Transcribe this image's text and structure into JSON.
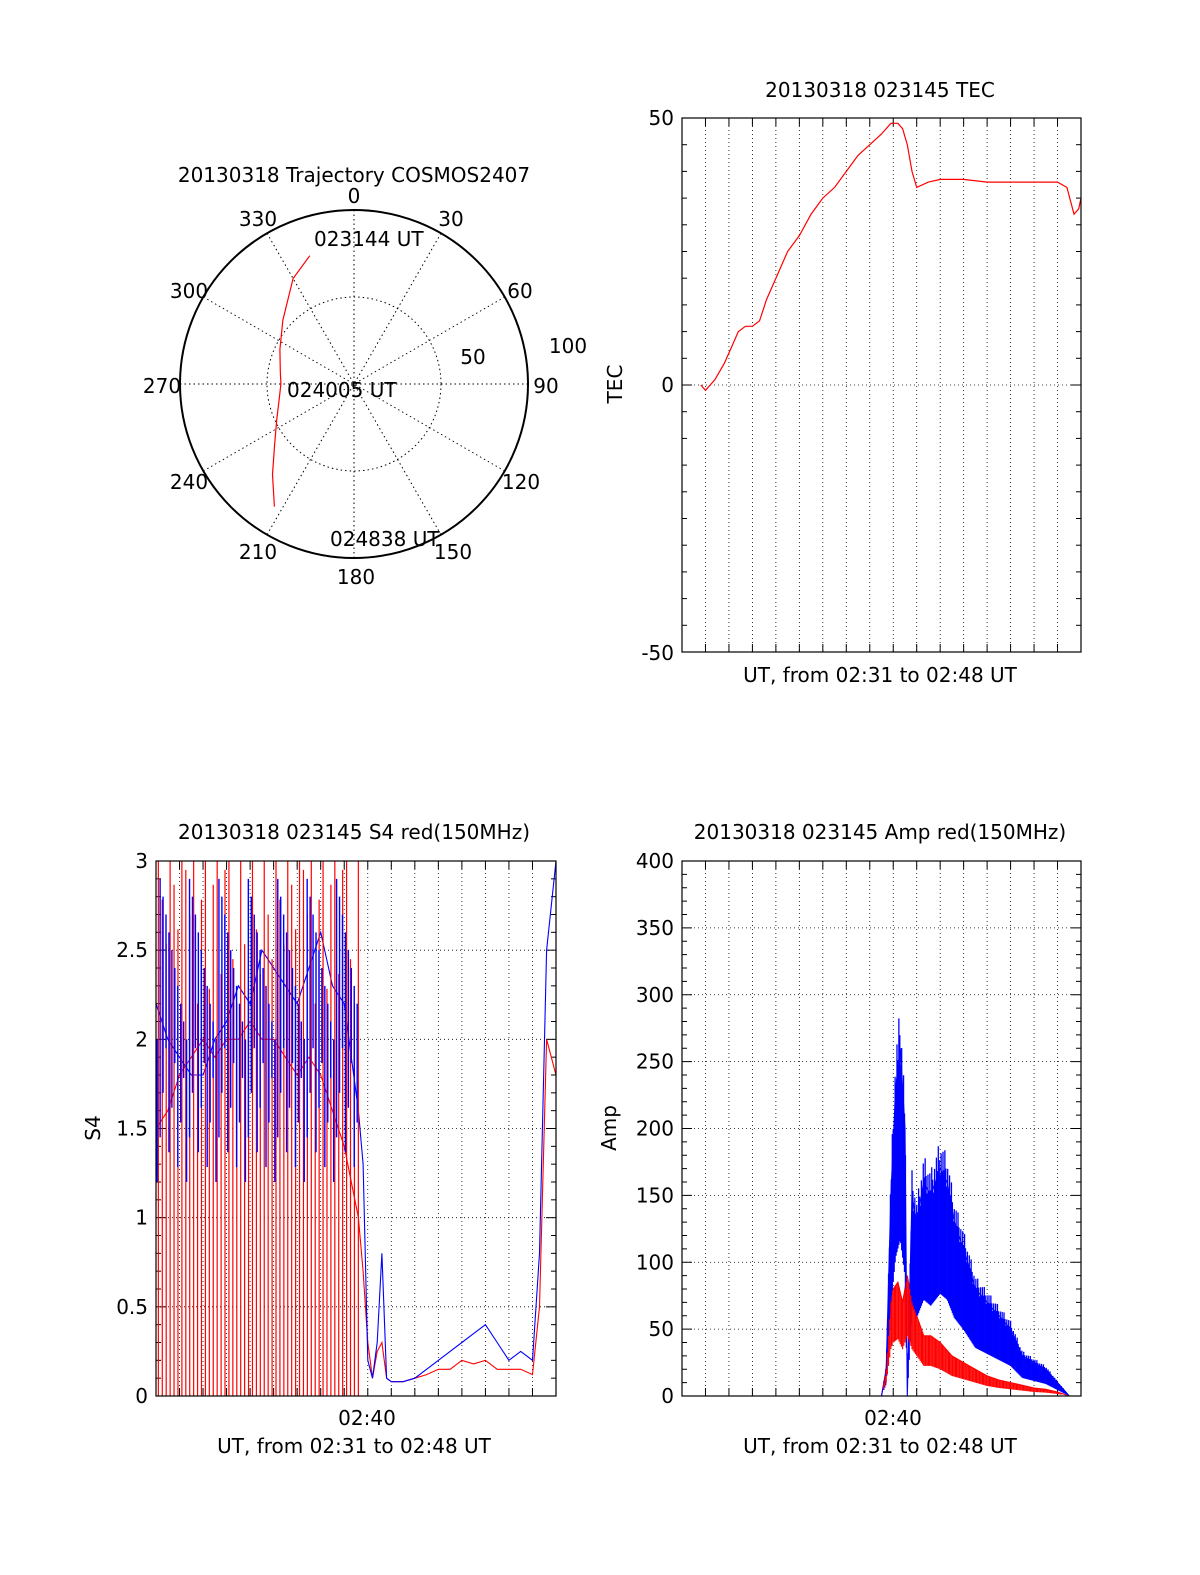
{
  "colors": {
    "red": "#ff0000",
    "blue": "#0000ff",
    "axis": "#000000"
  },
  "chart_data": [
    {
      "id": "trajectory",
      "type": "polar",
      "title": "20130318 Trajectory COSMOS2407",
      "angle_labels": [
        "0",
        "30",
        "60",
        "90",
        "120",
        "150",
        "180",
        "210",
        "240",
        "270",
        "300",
        "330"
      ],
      "radial_labels": [
        "50",
        "100"
      ],
      "radial_range": [
        0,
        100
      ],
      "annotations": [
        "023144 UT",
        "024005 UT",
        "024838 UT"
      ],
      "series": [
        {
          "name": "trajectory",
          "color": "red",
          "points_az_r": [
            [
              341,
              78
            ],
            [
              330,
              70
            ],
            [
              312,
              55
            ],
            [
              295,
              47
            ],
            [
              280,
              43
            ],
            [
              270,
              42
            ],
            [
              258,
              44
            ],
            [
              245,
              49
            ],
            [
              232,
              58
            ],
            [
              222,
              70
            ],
            [
              213,
              84
            ]
          ]
        }
      ]
    },
    {
      "id": "tec",
      "type": "line",
      "title": "20130318 023145 TEC",
      "xlabel": "UT, from 02:31 to 02:48 UT",
      "ylabel": "TEC",
      "ylim": [
        -50,
        50
      ],
      "yticks": [
        "50",
        "0",
        "-50"
      ],
      "xlim_minutes": [
        0,
        17
      ],
      "grid": true,
      "series": [
        {
          "name": "TEC",
          "color": "red",
          "x": [
            0.8,
            1.0,
            1.4,
            1.8,
            2.1,
            2.4,
            2.7,
            3.0,
            3.3,
            3.6,
            4.0,
            4.5,
            5.0,
            5.5,
            6.0,
            6.5,
            7.0,
            7.5,
            8.0,
            8.5,
            8.9,
            9.2,
            9.4,
            9.6,
            9.8,
            10.0,
            10.5,
            11.0,
            12.0,
            13.0,
            14.0,
            15.0,
            15.5,
            16.0,
            16.4,
            16.7,
            16.9,
            17.0
          ],
          "y": [
            0,
            -1,
            1,
            4,
            7,
            10,
            11,
            11,
            12,
            16,
            20,
            25,
            28,
            32,
            35,
            37,
            40,
            43,
            45,
            47,
            49,
            49,
            48,
            45,
            40,
            37,
            38,
            38.5,
            38.5,
            38,
            38,
            38,
            38,
            38,
            37,
            32,
            33,
            35
          ]
        }
      ]
    },
    {
      "id": "s4",
      "type": "line",
      "title": "20130318 023145 S4 red(150MHz)",
      "xlabel": "UT, from 02:31 to 02:48 UT",
      "ylabel": "S4",
      "ylim": [
        0,
        3
      ],
      "yticks": [
        "0",
        "0.5",
        "1",
        "1.5",
        "2",
        "2.5",
        "3"
      ],
      "xticks": [
        "02:40"
      ],
      "xlim_minutes": [
        0,
        17
      ],
      "grid": true,
      "series": [
        {
          "name": "red(150MHz)",
          "color": "red",
          "x": [
            0.0,
            0.5,
            1.0,
            1.5,
            2.0,
            2.5,
            3.0,
            3.5,
            4.0,
            4.5,
            5.0,
            5.5,
            6.0,
            6.5,
            7.0,
            7.5,
            8.0,
            8.3,
            8.6,
            8.8,
            9.0,
            9.2,
            9.4,
            9.6,
            9.8,
            10.0,
            10.5,
            11.0,
            11.5,
            12.0,
            12.5,
            13.0,
            13.5,
            14.0,
            14.5,
            15.0,
            15.5,
            16.0,
            16.3,
            16.6,
            17.0
          ],
          "y": [
            1.5,
            1.6,
            1.8,
            1.9,
            2.0,
            1.9,
            2.0,
            2.0,
            2.1,
            2.0,
            2.0,
            1.9,
            1.8,
            1.9,
            1.8,
            1.6,
            1.4,
            1.2,
            1.0,
            0.7,
            0.3,
            0.1,
            0.25,
            0.3,
            0.1,
            0.08,
            0.08,
            0.1,
            0.12,
            0.15,
            0.15,
            0.2,
            0.18,
            0.2,
            0.15,
            0.15,
            0.15,
            0.12,
            0.5,
            2.0,
            1.8
          ]
        },
        {
          "name": "blue",
          "color": "blue",
          "x": [
            0.0,
            0.5,
            1.0,
            1.5,
            2.0,
            2.5,
            3.0,
            3.5,
            4.0,
            4.5,
            5.0,
            5.5,
            6.0,
            6.5,
            7.0,
            7.5,
            8.0,
            8.3,
            8.6,
            8.8,
            9.0,
            9.2,
            9.4,
            9.6,
            9.8,
            10.0,
            10.5,
            11.0,
            11.5,
            12.0,
            12.5,
            13.0,
            13.5,
            14.0,
            14.5,
            15.0,
            15.5,
            16.0,
            16.3,
            16.6,
            17.0
          ],
          "y": [
            2.2,
            2.0,
            1.9,
            1.8,
            1.8,
            2.0,
            2.1,
            2.3,
            2.2,
            2.5,
            2.4,
            2.3,
            2.2,
            2.4,
            2.6,
            2.3,
            2.2,
            1.9,
            1.6,
            1.3,
            0.2,
            0.1,
            0.3,
            0.8,
            0.1,
            0.08,
            0.08,
            0.1,
            0.15,
            0.2,
            0.25,
            0.3,
            0.35,
            0.4,
            0.3,
            0.2,
            0.25,
            0.2,
            0.8,
            2.5,
            3.0
          ]
        }
      ]
    },
    {
      "id": "amp",
      "type": "line",
      "title": "20130318 023145 Amp red(150MHz)",
      "xlabel": "UT, from 02:31 to 02:48 UT",
      "ylabel": "Amp",
      "ylim": [
        0,
        400
      ],
      "yticks": [
        "0",
        "50",
        "100",
        "150",
        "200",
        "250",
        "300",
        "350",
        "400"
      ],
      "xticks": [
        "02:40"
      ],
      "xlim_minutes": [
        0,
        17
      ],
      "grid": true,
      "series": [
        {
          "name": "red(150MHz)",
          "color": "red",
          "x": [
            0.7,
            8.5,
            8.7,
            8.9,
            9.0,
            9.2,
            9.4,
            9.6,
            9.8,
            10.0,
            10.3,
            10.6,
            11.0,
            11.5,
            12.0,
            12.5,
            13.0,
            13.5,
            14.0,
            14.5,
            15.0,
            15.5,
            16.0,
            16.5
          ],
          "y": [
            0,
            0,
            20,
            70,
            80,
            85,
            70,
            90,
            70,
            60,
            45,
            45,
            40,
            30,
            25,
            20,
            15,
            12,
            10,
            8,
            6,
            5,
            3,
            0
          ]
        },
        {
          "name": "blue",
          "color": "blue",
          "x": [
            0.7,
            8.5,
            8.7,
            8.9,
            9.1,
            9.3,
            9.5,
            9.6,
            9.8,
            10.0,
            10.3,
            10.6,
            11.0,
            11.3,
            11.6,
            12.0,
            12.5,
            13.0,
            13.5,
            14.0,
            14.5,
            15.0,
            15.5,
            16.0,
            16.5
          ],
          "y": [
            0,
            0,
            20,
            150,
            230,
            260,
            200,
            0,
            150,
            130,
            160,
            150,
            170,
            160,
            130,
            110,
            80,
            70,
            60,
            50,
            30,
            25,
            20,
            10,
            0
          ]
        }
      ]
    }
  ]
}
